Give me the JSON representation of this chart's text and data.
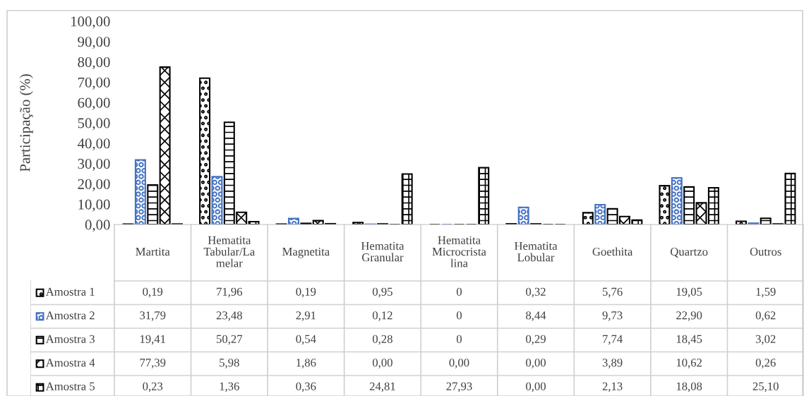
{
  "chart_data": {
    "type": "bar",
    "ylabel": "Participação (%)",
    "categories": [
      "Martita",
      "Hematita\nTabular/La\nmelar",
      "Magnetita",
      "Hematita\nGranular",
      "Hematita\nMicrocrista\nlina",
      "Hematita\nLobular",
      "Goethita",
      "Quartzo",
      "Outros"
    ],
    "series": [
      {
        "name": "Amostra 1",
        "color": "#000000",
        "values": [
          0.19,
          71.96,
          0.19,
          0.95,
          0,
          0.32,
          5.76,
          19.05,
          1.59
        ],
        "value_labels": [
          "0,19",
          "71,96",
          "0,19",
          "0,95",
          "0",
          "0,32",
          "5,76",
          "19,05",
          "1,59"
        ]
      },
      {
        "name": "Amostra 2",
        "color": "#4472c4",
        "values": [
          31.79,
          23.48,
          2.91,
          0.12,
          0,
          8.44,
          9.73,
          22.9,
          0.62
        ],
        "value_labels": [
          "31,79",
          "23,48",
          "2,91",
          "0,12",
          "0",
          "8,44",
          "9,73",
          "22,90",
          "0,62"
        ]
      },
      {
        "name": "Amostra 3",
        "color": "#000000",
        "values": [
          19.41,
          50.27,
          0.54,
          0.28,
          0,
          0.29,
          7.74,
          18.45,
          3.02
        ],
        "value_labels": [
          "19,41",
          "50,27",
          "0,54",
          "0,28",
          "0",
          "0,29",
          "7,74",
          "18,45",
          "3,02"
        ]
      },
      {
        "name": "Amostra 4",
        "color": "#000000",
        "values": [
          77.39,
          5.98,
          1.86,
          0.0,
          0.0,
          0.0,
          3.89,
          10.62,
          0.26
        ],
        "value_labels": [
          "77,39",
          "5,98",
          "1,86",
          "0,00",
          "0,00",
          "0,00",
          "3,89",
          "10,62",
          "0,26"
        ]
      },
      {
        "name": "Amostra 5",
        "color": "#000000",
        "values": [
          0.23,
          1.36,
          0.36,
          24.81,
          27.93,
          0.0,
          2.13,
          18.08,
          25.1
        ],
        "value_labels": [
          "0,23",
          "1,36",
          "0,36",
          "24,81",
          "27,93",
          "0,00",
          "2,13",
          "18,08",
          "25,10"
        ]
      }
    ],
    "ylim": [
      0,
      100
    ],
    "yticks": [
      {
        "value": 0,
        "label": "0,00"
      },
      {
        "value": 10,
        "label": "10,00"
      },
      {
        "value": 20,
        "label": "20,00"
      },
      {
        "value": 30,
        "label": "30,00"
      },
      {
        "value": 40,
        "label": "40,00"
      },
      {
        "value": 50,
        "label": "50,00"
      },
      {
        "value": 60,
        "label": "60,00"
      },
      {
        "value": 70,
        "label": "70,00"
      },
      {
        "value": 80,
        "label": "80,00"
      },
      {
        "value": 90,
        "label": "90,00"
      },
      {
        "value": 100,
        "label": "100,00"
      }
    ],
    "grid": false,
    "legend": "bottom left"
  }
}
